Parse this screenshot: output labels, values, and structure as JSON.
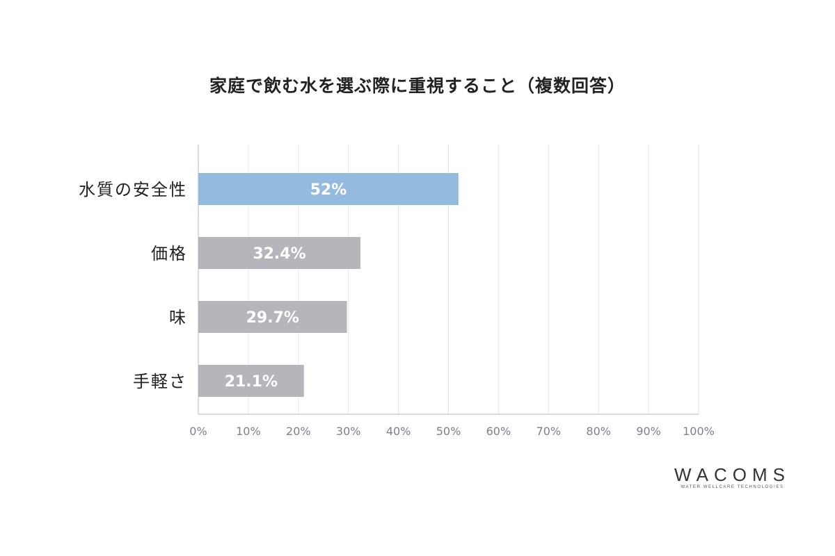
{
  "chart_data": {
    "type": "bar",
    "orientation": "horizontal",
    "title": "家庭で飲む水を選ぶ際に重視すること（複数回答）",
    "categories": [
      "水質の安全性",
      "価格",
      "味",
      "手軽さ"
    ],
    "values": [
      52,
      32.4,
      29.7,
      21.1
    ],
    "data_labels": [
      "52%",
      "32.4%",
      "29.7%",
      "21.1%"
    ],
    "xlim": [
      0,
      100
    ],
    "x_ticks": [
      "0%",
      "10%",
      "20%",
      "30%",
      "40%",
      "50%",
      "60%",
      "70%",
      "80%",
      "90%",
      "100%"
    ],
    "grid": true,
    "colors": {
      "highlight": "#94badf",
      "default": "#b5b6bb",
      "grid": "#e6e6ea",
      "axis": "#b8b8bc",
      "tick_label": "#7d7f8a",
      "category_label": "#222222",
      "data_label": "#ffffff"
    }
  },
  "logo": {
    "text": "WACOMS",
    "tagline": "WATER WELLCARE TECHNOLOGIES"
  }
}
